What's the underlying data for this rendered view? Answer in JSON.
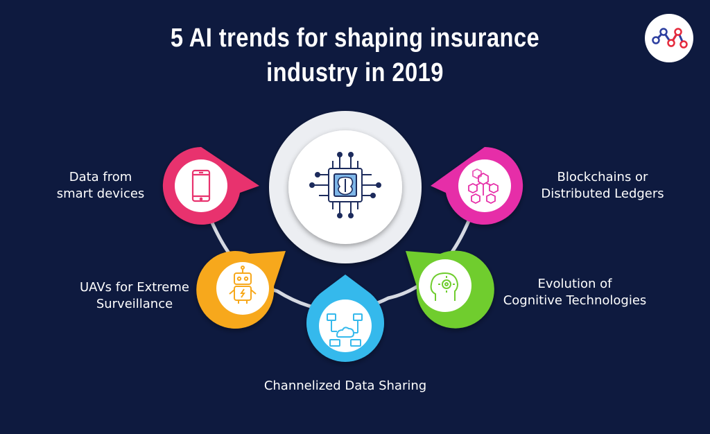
{
  "title": {
    "line1": "5 AI trends for shaping insurance",
    "line2": "industry in 2019"
  },
  "logo": {
    "icon": "brand-logo-icon"
  },
  "center": {
    "icon": "ai-chip-brain-icon",
    "color": "#ffffff"
  },
  "trends": [
    {
      "id": "smart-devices",
      "line1": "Data from",
      "line2": "smart devices",
      "color": "#e8326e",
      "icon": "smartphone-icon"
    },
    {
      "id": "uavs",
      "line1": "UAVs for Extreme",
      "line2": "Surveillance",
      "color": "#f7a81b",
      "icon": "robot-icon"
    },
    {
      "id": "data-sharing",
      "line1": "Channelized Data Sharing",
      "line2": "",
      "color": "#35b9ec",
      "icon": "cloud-network-icon"
    },
    {
      "id": "cognitive",
      "line1": "Evolution of",
      "line2": "Cognitive Technologies",
      "color": "#6fcd2e",
      "icon": "head-gear-icon"
    },
    {
      "id": "blockchain",
      "line1": "Blockchains or",
      "line2": "Distributed Ledgers",
      "color": "#e62ea8",
      "icon": "blockchain-cubes-icon"
    }
  ]
}
